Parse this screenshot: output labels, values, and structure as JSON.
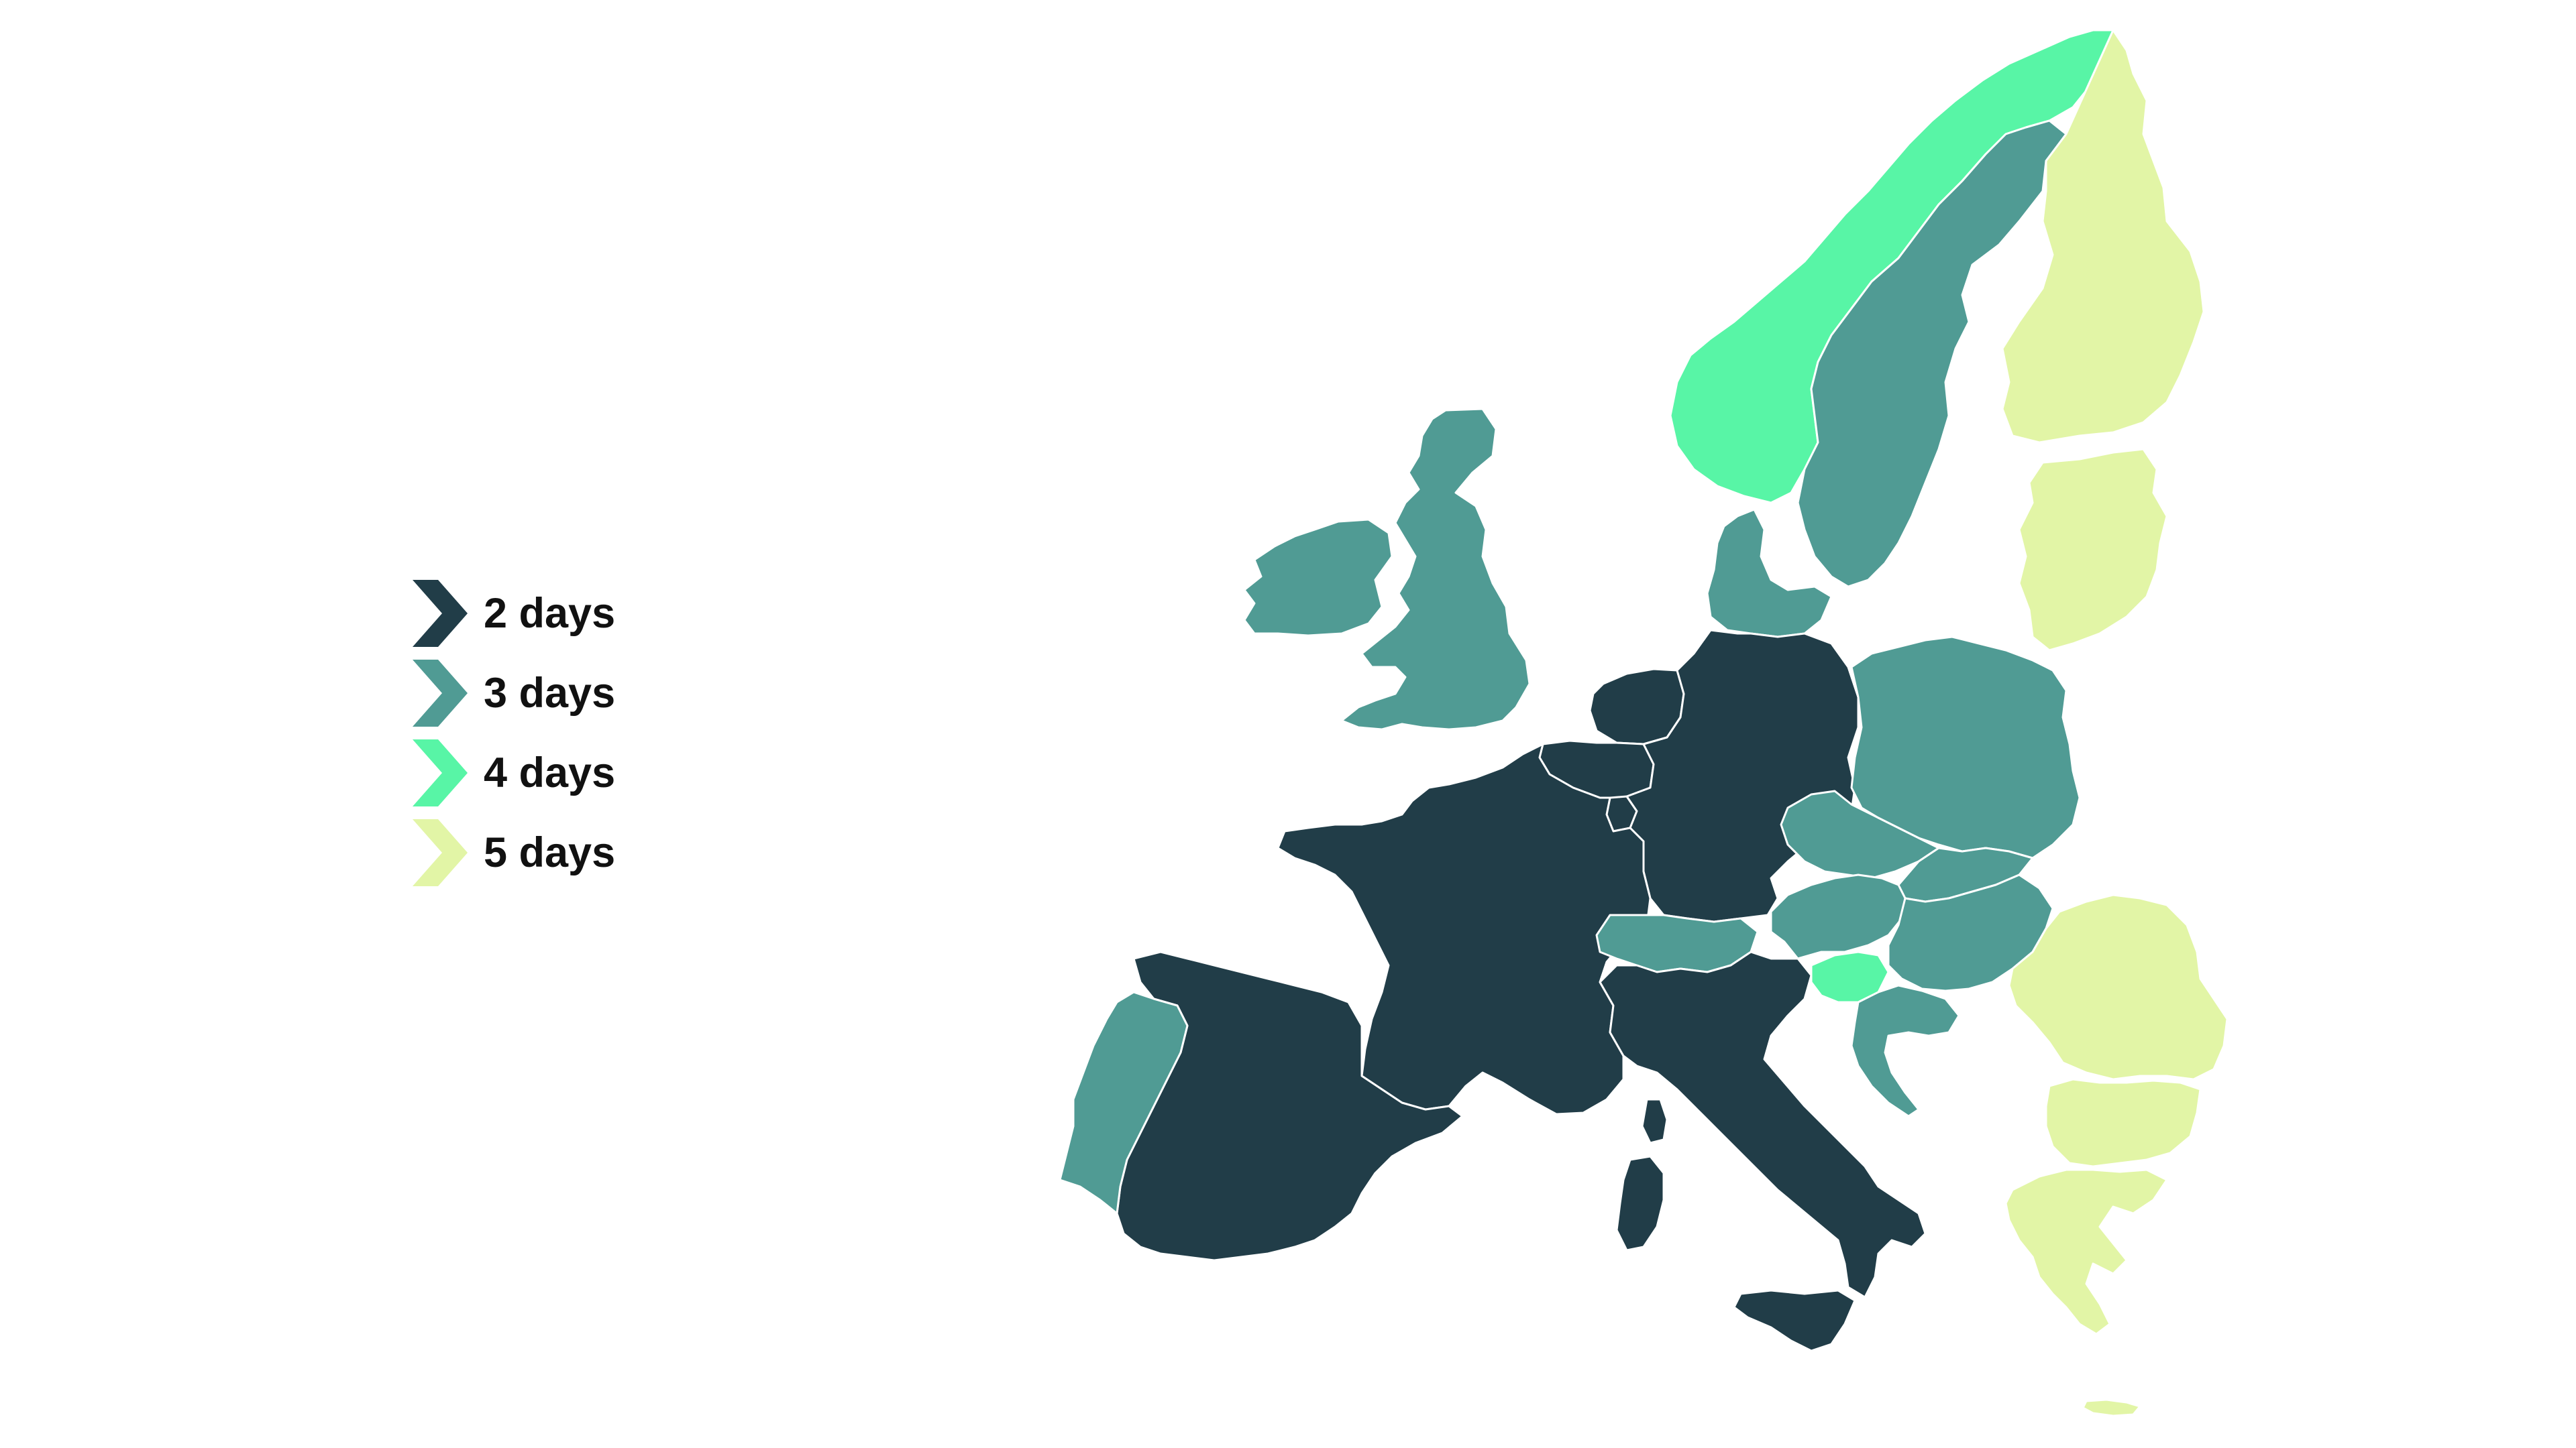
{
  "legend": {
    "items": [
      {
        "label": "2 days",
        "color": "#213d48"
      },
      {
        "label": "3 days",
        "color": "#509b94"
      },
      {
        "label": "4 days",
        "color": "#58f5a6"
      },
      {
        "label": "5 days",
        "color": "#e2f5a6"
      }
    ]
  },
  "map": {
    "regions": [
      {
        "name": "region-ireland",
        "category": 1
      },
      {
        "name": "region-great-britain",
        "category": 1
      },
      {
        "name": "region-norway",
        "category": 2
      },
      {
        "name": "region-sweden",
        "category": 1
      },
      {
        "name": "region-finland",
        "category": 3
      },
      {
        "name": "region-baltics",
        "category": 3
      },
      {
        "name": "region-denmark",
        "category": 1
      },
      {
        "name": "region-netherlands",
        "category": 0
      },
      {
        "name": "region-belgium",
        "category": 0
      },
      {
        "name": "region-luxembourg",
        "category": 0
      },
      {
        "name": "region-germany",
        "category": 0
      },
      {
        "name": "region-france",
        "category": 0
      },
      {
        "name": "region-spain",
        "category": 0
      },
      {
        "name": "region-portugal",
        "category": 1
      },
      {
        "name": "region-switzerland",
        "category": 1
      },
      {
        "name": "region-italy",
        "category": 0
      },
      {
        "name": "region-sardinia",
        "category": 0
      },
      {
        "name": "region-corsica",
        "category": 0
      },
      {
        "name": "region-sicily",
        "category": 0
      },
      {
        "name": "region-poland",
        "category": 1
      },
      {
        "name": "region-czechia",
        "category": 1
      },
      {
        "name": "region-slovakia",
        "category": 1
      },
      {
        "name": "region-austria",
        "category": 1
      },
      {
        "name": "region-hungary",
        "category": 1
      },
      {
        "name": "region-slovenia",
        "category": 2
      },
      {
        "name": "region-croatia",
        "category": 1
      },
      {
        "name": "region-romania",
        "category": 3
      },
      {
        "name": "region-bulgaria",
        "category": 3
      },
      {
        "name": "region-greece",
        "category": 3
      },
      {
        "name": "region-crete",
        "category": 3
      }
    ]
  }
}
